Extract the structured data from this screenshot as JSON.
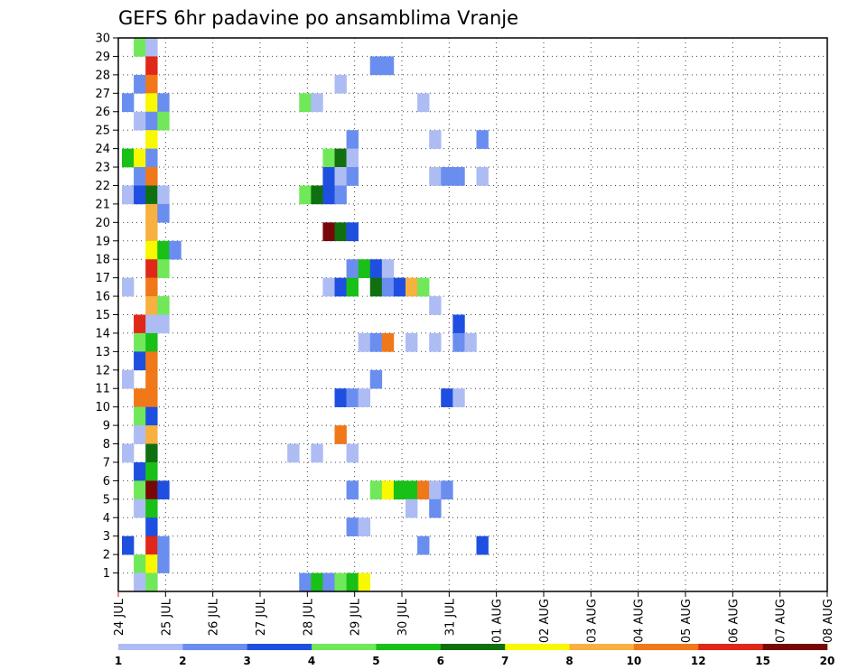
{
  "chart_data": {
    "type": "heatmap",
    "title": "GEFS 6hr padavine po ansamblima Vranje",
    "x_tick_labels": [
      "24 JUL",
      "25 JUL",
      "26 JUL",
      "27 JUL",
      "28 JUL",
      "29 JUL",
      "30 JUL",
      "31 JUL",
      "01 AUG",
      "02 AUG",
      "03 AUG",
      "04 AUG",
      "05 AUG",
      "06 AUG",
      "07 AUG",
      "08 AUG"
    ],
    "y_tick_labels": [
      "1",
      "2",
      "3",
      "4",
      "5",
      "6",
      "7",
      "8",
      "9",
      "10",
      "11",
      "12",
      "13",
      "14",
      "15",
      "16",
      "17",
      "18",
      "19",
      "20",
      "21",
      "22",
      "23",
      "24",
      "25",
      "26",
      "27",
      "28",
      "29",
      "30"
    ],
    "y_range": [
      0,
      30
    ],
    "x_step_hours": 6,
    "grid": true,
    "color_scale": {
      "thresholds": [
        "1",
        "2",
        "3",
        "4",
        "5",
        "6",
        "7",
        "8",
        "10",
        "12",
        "15",
        "20"
      ],
      "colors": [
        "#aebcf4",
        "#6a8ef0",
        "#1f4fe0",
        "#70e85a",
        "#18c018",
        "#107010",
        "#f8f800",
        "#f8b040",
        "#f07818",
        "#e02818",
        "#780808"
      ]
    },
    "cells": [
      {
        "ens": 30,
        "t": 1,
        "c": 4
      },
      {
        "ens": 30,
        "t": 2,
        "c": 1
      },
      {
        "ens": 29,
        "t": 2,
        "c": 10
      },
      {
        "ens": 29,
        "t": 21,
        "c": 2
      },
      {
        "ens": 29,
        "t": 22,
        "c": 2
      },
      {
        "ens": 28,
        "t": 1,
        "c": 2
      },
      {
        "ens": 28,
        "t": 2,
        "c": 9
      },
      {
        "ens": 28,
        "t": 18,
        "c": 1
      },
      {
        "ens": 27,
        "t": 0,
        "c": 2
      },
      {
        "ens": 27,
        "t": 2,
        "c": 7
      },
      {
        "ens": 27,
        "t": 3,
        "c": 2
      },
      {
        "ens": 27,
        "t": 15,
        "c": 4
      },
      {
        "ens": 27,
        "t": 16,
        "c": 1
      },
      {
        "ens": 27,
        "t": 25,
        "c": 1
      },
      {
        "ens": 26,
        "t": 1,
        "c": 1
      },
      {
        "ens": 26,
        "t": 2,
        "c": 2
      },
      {
        "ens": 26,
        "t": 3,
        "c": 4
      },
      {
        "ens": 25,
        "t": 2,
        "c": 7
      },
      {
        "ens": 25,
        "t": 19,
        "c": 2
      },
      {
        "ens": 25,
        "t": 26,
        "c": 1
      },
      {
        "ens": 25,
        "t": 30,
        "c": 2
      },
      {
        "ens": 24,
        "t": 0,
        "c": 5
      },
      {
        "ens": 24,
        "t": 1,
        "c": 7
      },
      {
        "ens": 24,
        "t": 2,
        "c": 2
      },
      {
        "ens": 24,
        "t": 17,
        "c": 4
      },
      {
        "ens": 24,
        "t": 18,
        "c": 6
      },
      {
        "ens": 24,
        "t": 19,
        "c": 1
      },
      {
        "ens": 23,
        "t": 1,
        "c": 2
      },
      {
        "ens": 23,
        "t": 2,
        "c": 9
      },
      {
        "ens": 23,
        "t": 17,
        "c": 3
      },
      {
        "ens": 23,
        "t": 18,
        "c": 1
      },
      {
        "ens": 23,
        "t": 19,
        "c": 2
      },
      {
        "ens": 23,
        "t": 26,
        "c": 1
      },
      {
        "ens": 23,
        "t": 27,
        "c": 2
      },
      {
        "ens": 23,
        "t": 28,
        "c": 2
      },
      {
        "ens": 23,
        "t": 30,
        "c": 1
      },
      {
        "ens": 22,
        "t": 0,
        "c": 1
      },
      {
        "ens": 22,
        "t": 1,
        "c": 3
      },
      {
        "ens": 22,
        "t": 2,
        "c": 6
      },
      {
        "ens": 22,
        "t": 3,
        "c": 1
      },
      {
        "ens": 22,
        "t": 15,
        "c": 4
      },
      {
        "ens": 22,
        "t": 16,
        "c": 6
      },
      {
        "ens": 22,
        "t": 17,
        "c": 3
      },
      {
        "ens": 22,
        "t": 18,
        "c": 2
      },
      {
        "ens": 21,
        "t": 2,
        "c": 8
      },
      {
        "ens": 21,
        "t": 3,
        "c": 2
      },
      {
        "ens": 20,
        "t": 2,
        "c": 8
      },
      {
        "ens": 20,
        "t": 17,
        "c": 11
      },
      {
        "ens": 20,
        "t": 18,
        "c": 6
      },
      {
        "ens": 20,
        "t": 19,
        "c": 3
      },
      {
        "ens": 19,
        "t": 2,
        "c": 7
      },
      {
        "ens": 19,
        "t": 3,
        "c": 5
      },
      {
        "ens": 19,
        "t": 4,
        "c": 2
      },
      {
        "ens": 18,
        "t": 2,
        "c": 10
      },
      {
        "ens": 18,
        "t": 3,
        "c": 4
      },
      {
        "ens": 18,
        "t": 19,
        "c": 2
      },
      {
        "ens": 18,
        "t": 20,
        "c": 5
      },
      {
        "ens": 18,
        "t": 21,
        "c": 3
      },
      {
        "ens": 18,
        "t": 22,
        "c": 1
      },
      {
        "ens": 17,
        "t": 0,
        "c": 1
      },
      {
        "ens": 17,
        "t": 2,
        "c": 9
      },
      {
        "ens": 17,
        "t": 17,
        "c": 1
      },
      {
        "ens": 17,
        "t": 18,
        "c": 3
      },
      {
        "ens": 17,
        "t": 19,
        "c": 5
      },
      {
        "ens": 17,
        "t": 21,
        "c": 6
      },
      {
        "ens": 17,
        "t": 22,
        "c": 2
      },
      {
        "ens": 17,
        "t": 23,
        "c": 3
      },
      {
        "ens": 17,
        "t": 24,
        "c": 8
      },
      {
        "ens": 17,
        "t": 25,
        "c": 4
      },
      {
        "ens": 16,
        "t": 2,
        "c": 8
      },
      {
        "ens": 16,
        "t": 3,
        "c": 4
      },
      {
        "ens": 16,
        "t": 26,
        "c": 1
      },
      {
        "ens": 15,
        "t": 1,
        "c": 10
      },
      {
        "ens": 15,
        "t": 2,
        "c": 1
      },
      {
        "ens": 15,
        "t": 3,
        "c": 1
      },
      {
        "ens": 15,
        "t": 28,
        "c": 3
      },
      {
        "ens": 14,
        "t": 1,
        "c": 4
      },
      {
        "ens": 14,
        "t": 2,
        "c": 5
      },
      {
        "ens": 14,
        "t": 20,
        "c": 1
      },
      {
        "ens": 14,
        "t": 21,
        "c": 2
      },
      {
        "ens": 14,
        "t": 22,
        "c": 9
      },
      {
        "ens": 14,
        "t": 24,
        "c": 1
      },
      {
        "ens": 14,
        "t": 26,
        "c": 1
      },
      {
        "ens": 14,
        "t": 28,
        "c": 2
      },
      {
        "ens": 14,
        "t": 29,
        "c": 1
      },
      {
        "ens": 13,
        "t": 1,
        "c": 3
      },
      {
        "ens": 13,
        "t": 2,
        "c": 9
      },
      {
        "ens": 12,
        "t": 0,
        "c": 1
      },
      {
        "ens": 12,
        "t": 2,
        "c": 9
      },
      {
        "ens": 12,
        "t": 21,
        "c": 2
      },
      {
        "ens": 11,
        "t": 1,
        "c": 9
      },
      {
        "ens": 11,
        "t": 2,
        "c": 9
      },
      {
        "ens": 11,
        "t": 18,
        "c": 3
      },
      {
        "ens": 11,
        "t": 19,
        "c": 2
      },
      {
        "ens": 11,
        "t": 20,
        "c": 1
      },
      {
        "ens": 11,
        "t": 27,
        "c": 3
      },
      {
        "ens": 11,
        "t": 28,
        "c": 1
      },
      {
        "ens": 10,
        "t": 1,
        "c": 4
      },
      {
        "ens": 10,
        "t": 2,
        "c": 3
      },
      {
        "ens": 9,
        "t": 1,
        "c": 1
      },
      {
        "ens": 9,
        "t": 2,
        "c": 8
      },
      {
        "ens": 9,
        "t": 18,
        "c": 9
      },
      {
        "ens": 8,
        "t": 0,
        "c": 1
      },
      {
        "ens": 8,
        "t": 2,
        "c": 6
      },
      {
        "ens": 8,
        "t": 14,
        "c": 1
      },
      {
        "ens": 8,
        "t": 16,
        "c": 1
      },
      {
        "ens": 8,
        "t": 19,
        "c": 1
      },
      {
        "ens": 7,
        "t": 1,
        "c": 3
      },
      {
        "ens": 7,
        "t": 2,
        "c": 5
      },
      {
        "ens": 6,
        "t": 1,
        "c": 4
      },
      {
        "ens": 6,
        "t": 2,
        "c": 11
      },
      {
        "ens": 6,
        "t": 3,
        "c": 3
      },
      {
        "ens": 6,
        "t": 19,
        "c": 2
      },
      {
        "ens": 6,
        "t": 21,
        "c": 4
      },
      {
        "ens": 6,
        "t": 22,
        "c": 7
      },
      {
        "ens": 6,
        "t": 23,
        "c": 5
      },
      {
        "ens": 6,
        "t": 24,
        "c": 5
      },
      {
        "ens": 6,
        "t": 25,
        "c": 9
      },
      {
        "ens": 6,
        "t": 26,
        "c": 1
      },
      {
        "ens": 6,
        "t": 27,
        "c": 2
      },
      {
        "ens": 5,
        "t": 1,
        "c": 1
      },
      {
        "ens": 5,
        "t": 2,
        "c": 5
      },
      {
        "ens": 5,
        "t": 24,
        "c": 1
      },
      {
        "ens": 5,
        "t": 26,
        "c": 2
      },
      {
        "ens": 4,
        "t": 2,
        "c": 3
      },
      {
        "ens": 4,
        "t": 19,
        "c": 2
      },
      {
        "ens": 4,
        "t": 20,
        "c": 1
      },
      {
        "ens": 3,
        "t": 0,
        "c": 3
      },
      {
        "ens": 3,
        "t": 2,
        "c": 10
      },
      {
        "ens": 3,
        "t": 3,
        "c": 2
      },
      {
        "ens": 3,
        "t": 25,
        "c": 2
      },
      {
        "ens": 3,
        "t": 30,
        "c": 3
      },
      {
        "ens": 2,
        "t": 1,
        "c": 4
      },
      {
        "ens": 2,
        "t": 2,
        "c": 7
      },
      {
        "ens": 2,
        "t": 3,
        "c": 2
      },
      {
        "ens": 1,
        "t": 1,
        "c": 1
      },
      {
        "ens": 1,
        "t": 2,
        "c": 4
      },
      {
        "ens": 1,
        "t": 15,
        "c": 2
      },
      {
        "ens": 1,
        "t": 16,
        "c": 5
      },
      {
        "ens": 1,
        "t": 17,
        "c": 2
      },
      {
        "ens": 1,
        "t": 18,
        "c": 4
      },
      {
        "ens": 1,
        "t": 19,
        "c": 5
      },
      {
        "ens": 1,
        "t": 20,
        "c": 7
      }
    ]
  }
}
